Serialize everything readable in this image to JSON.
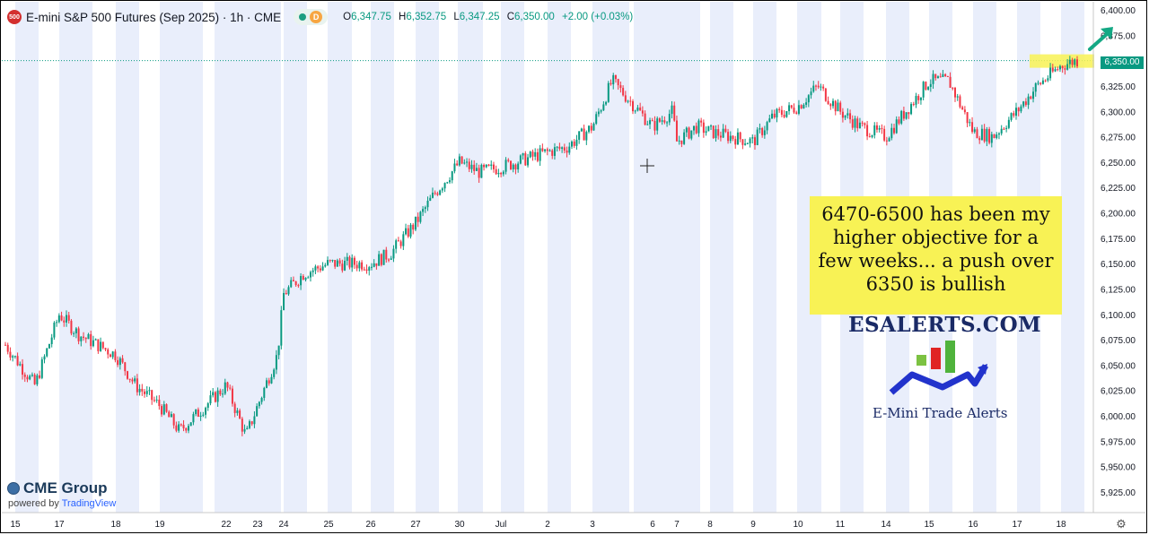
{
  "header": {
    "symbol_badge": "500",
    "title": "E-mini S&P 500 Futures (Sep 2025) · 1h · CME",
    "d_badge": "D",
    "ohlc": {
      "o_label": "O",
      "o": "6,347.75",
      "h_label": "H",
      "h": "6,352.75",
      "l_label": "L",
      "l": "6,347.25",
      "c_label": "C",
      "c": "6,350.00",
      "change": "+2.00 (+0.03%)"
    }
  },
  "annotation": {
    "lines": [
      "6470-6500 has been my",
      "higher objective for a",
      "few weeks... a push over",
      "6350 is bullish"
    ]
  },
  "brand": {
    "name": "ESALERTS.COM",
    "tagline": "E-Mini Trade Alerts"
  },
  "footer": {
    "cme_label": "CME Group",
    "powered_prefix": "powered by ",
    "powered_brand": "TradingView"
  },
  "price_tag": "6,350.00",
  "colors": {
    "up": "#089981",
    "down": "#f23645",
    "band": "#e9eefb",
    "highlight": "#f8f255",
    "arrow": "#14a884"
  },
  "chart_data": {
    "type": "candlestick",
    "title": "E-mini S&P 500 Futures (Sep 2025) · 1h · CME",
    "ylim": [
      5912.5,
      6400
    ],
    "y_ticks": [
      "6,400.00",
      "6,375.00",
      "6,350.00",
      "6,325.00",
      "6,300.00",
      "6,275.00",
      "6,250.00",
      "6,225.00",
      "6,200.00",
      "6,175.00",
      "6,150.00",
      "6,125.00",
      "6,100.00",
      "6,075.00",
      "6,050.00",
      "6,025.00",
      "6,000.00",
      "5,975.00",
      "5,950.00",
      "5,925.00"
    ],
    "x_ticks": [
      "15",
      "17",
      "18",
      "19",
      "22",
      "23",
      "24",
      "25",
      "26",
      "27",
      "30",
      "Jul",
      "2",
      "3",
      "6",
      "7",
      "8",
      "9",
      "10",
      "11",
      "14",
      "15",
      "16",
      "17",
      "18"
    ],
    "current_price": 6350,
    "approx_path": [
      [
        "15",
        6070
      ],
      [
        "15",
        6030
      ],
      [
        "17",
        6100
      ],
      [
        "17",
        6080
      ],
      [
        "18",
        6060
      ],
      [
        "18",
        6030
      ],
      [
        "19",
        6010
      ],
      [
        "19",
        5985
      ],
      [
        "22",
        6030
      ],
      [
        "22",
        5980
      ],
      [
        "23",
        6010
      ],
      [
        "23",
        6060
      ],
      [
        "24",
        6120
      ],
      [
        "24",
        6140
      ],
      [
        "25",
        6150
      ],
      [
        "26",
        6150
      ],
      [
        "26",
        6160
      ],
      [
        "27",
        6190
      ],
      [
        "27",
        6220
      ],
      [
        "30",
        6250
      ],
      [
        "30",
        6240
      ],
      [
        "Jul",
        6245
      ],
      [
        "2",
        6260
      ],
      [
        "2",
        6265
      ],
      [
        "3",
        6285
      ],
      [
        "3",
        6330
      ],
      [
        "6",
        6285
      ],
      [
        "6",
        6300
      ],
      [
        "7",
        6270
      ],
      [
        "7",
        6285
      ],
      [
        "8",
        6280
      ],
      [
        "9",
        6270
      ],
      [
        "9",
        6295
      ],
      [
        "10",
        6305
      ],
      [
        "10",
        6325
      ],
      [
        "11",
        6300
      ],
      [
        "11",
        6285
      ],
      [
        "14",
        6275
      ],
      [
        "14",
        6300
      ],
      [
        "15",
        6330
      ],
      [
        "15",
        6330
      ],
      [
        "16",
        6280
      ],
      [
        "16",
        6275
      ],
      [
        "17",
        6300
      ],
      [
        "17",
        6325
      ],
      [
        "18",
        6345
      ],
      [
        "18",
        6350
      ]
    ]
  }
}
